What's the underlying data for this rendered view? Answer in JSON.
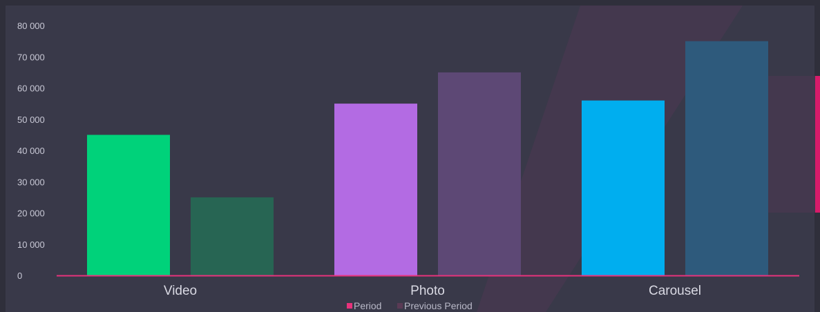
{
  "chart_data": {
    "type": "bar",
    "categories": [
      "Video",
      "Photo",
      "Carousel"
    ],
    "series": [
      {
        "name": "Period",
        "values": [
          45000,
          55000,
          56000
        ],
        "colors": [
          "#00d27a",
          "#b36be3",
          "#00aeef"
        ],
        "legend_color": "#e8327c"
      },
      {
        "name": "Previous Period",
        "values": [
          25000,
          65000,
          75000
        ],
        "colors": [
          "#276553",
          "#5d4875",
          "#2e5a7c"
        ],
        "legend_color": "#5a3a55"
      }
    ],
    "yticks": [
      "0",
      "10 000",
      "20 000",
      "30 000",
      "40 000",
      "50 000",
      "60 000",
      "70 000",
      "80 000"
    ],
    "ylim": [
      0,
      80000
    ],
    "baseline_color": "#e8327c",
    "legend_position": "bottom-center"
  }
}
